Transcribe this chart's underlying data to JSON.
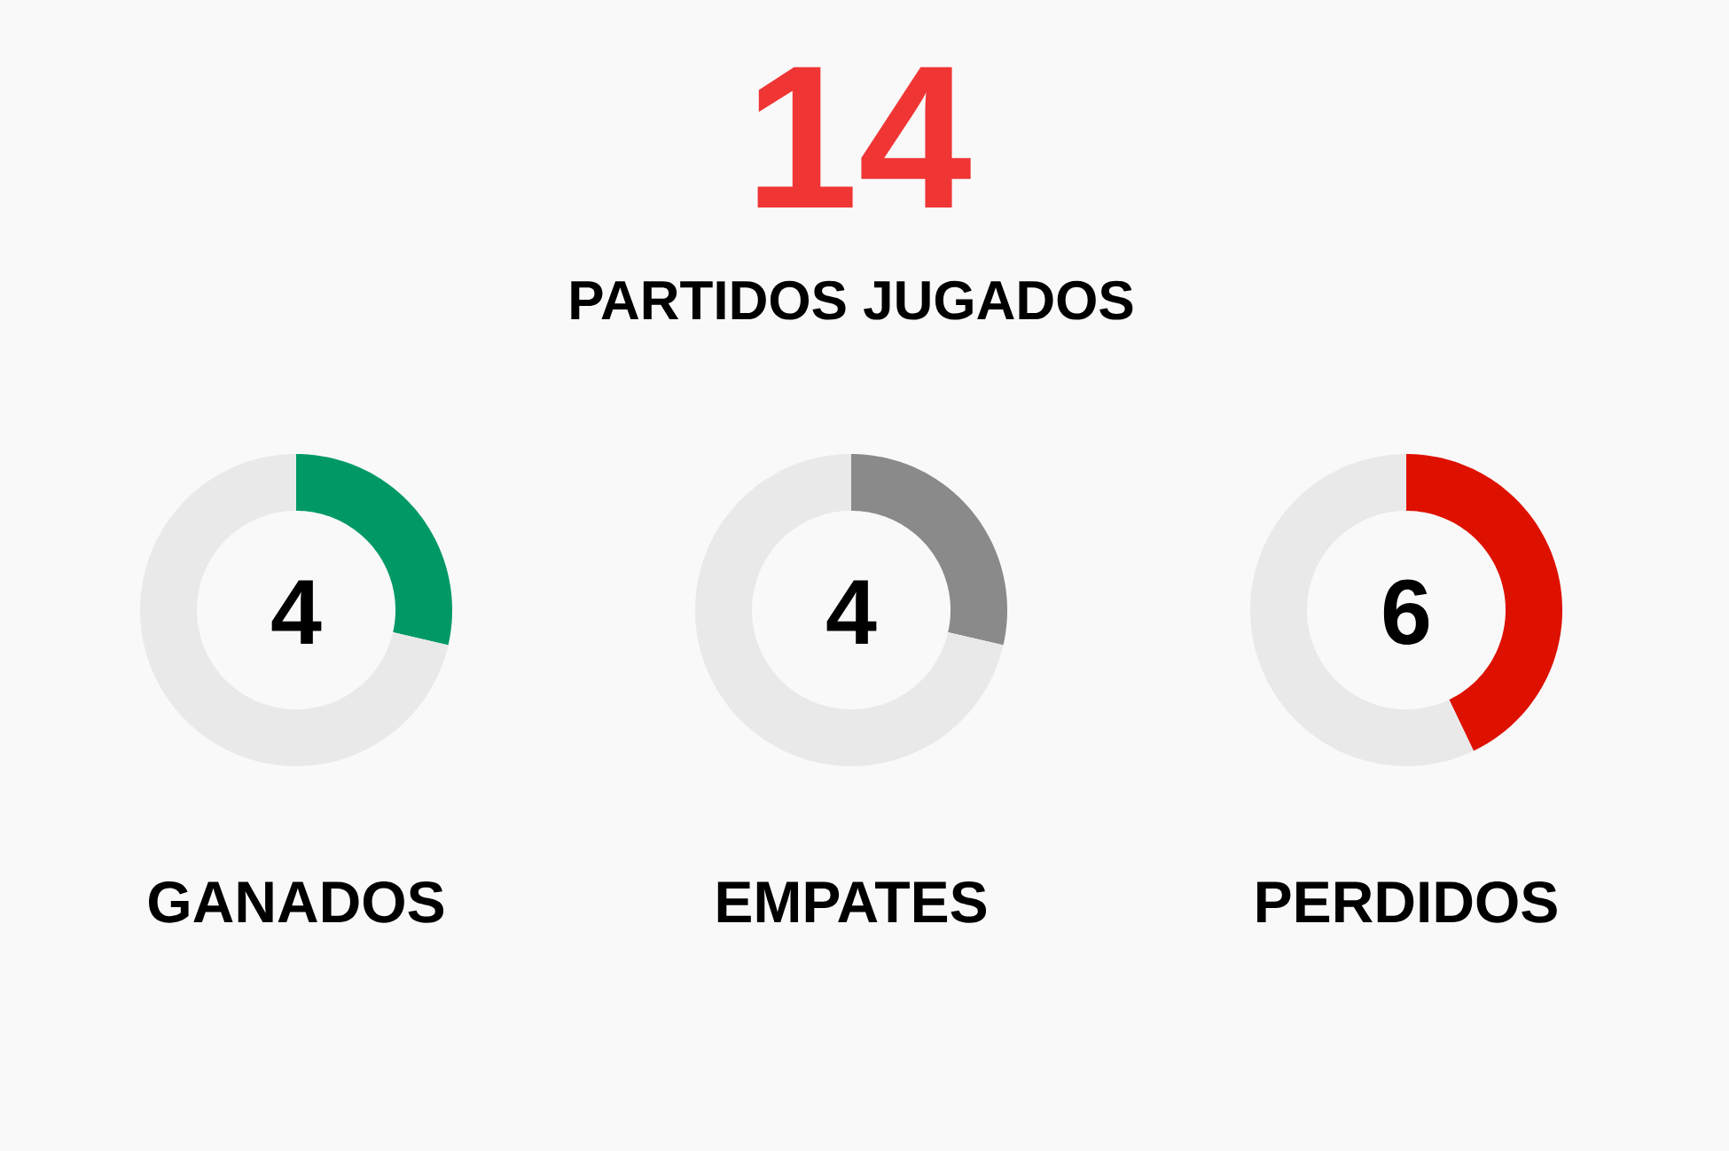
{
  "chart_data": [
    {
      "type": "other",
      "title": "14",
      "subtitle": "PARTIDOS JUGADOS"
    },
    {
      "type": "donut",
      "title": "GANADOS",
      "categories": [
        null,
        null
      ],
      "values": [
        28.6,
        71.4
      ],
      "colors": [
        "#009966",
        "#e9e9e9"
      ],
      "annotations": [
        "4"
      ]
    },
    {
      "type": "donut",
      "title": "EMPATES",
      "categories": [
        null,
        null
      ],
      "values": [
        28.6,
        71.4
      ],
      "colors": [
        "#8a8a8a",
        "#e9e9e9"
      ],
      "annotations": [
        "4"
      ]
    },
    {
      "type": "donut",
      "title": "PERDIDOS",
      "categories": [
        null,
        null
      ],
      "values": [
        42.9,
        57.1
      ],
      "colors": [
        "#de1100",
        "#e9e9e9"
      ],
      "annotations": [
        "6"
      ]
    }
  ]
}
